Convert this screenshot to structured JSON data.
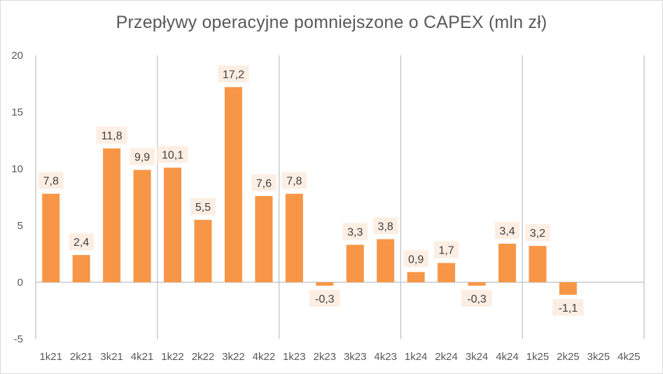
{
  "chart_data": {
    "type": "bar",
    "title": "Przepływy operacyjne pomniejszone o CAPEX (mln zł)",
    "xlabel": "",
    "ylabel": "",
    "categories": [
      "1k21",
      "2k21",
      "3k21",
      "4k21",
      "1k22",
      "2k22",
      "3k22",
      "4k22",
      "1k23",
      "2k23",
      "3k23",
      "4k23",
      "1k24",
      "2k24",
      "3k24",
      "4k24",
      "1k25",
      "2k25",
      "3k25",
      "4k25"
    ],
    "values": [
      7.8,
      2.4,
      11.8,
      9.9,
      10.1,
      5.5,
      17.2,
      7.6,
      7.8,
      -0.3,
      3.3,
      3.8,
      0.9,
      1.7,
      -0.3,
      3.4,
      3.2,
      -1.1,
      null,
      null
    ],
    "data_labels": [
      "7,8",
      "2,4",
      "11,8",
      "9,9",
      "10,1",
      "5,5",
      "17,2",
      "7,6",
      "7,8",
      "-0,3",
      "3,3",
      "3,8",
      "0,9",
      "1,7",
      "-0,3",
      "3,4",
      "3,2",
      "-1,1",
      "",
      ""
    ],
    "ylim": [
      -5,
      20
    ],
    "yticks": [
      20,
      15,
      10,
      5,
      0,
      -5
    ],
    "ytick_labels": [
      "20",
      "15",
      "10",
      "5",
      "0",
      "-5"
    ],
    "grid": "vertical separators between years",
    "legend": "none",
    "colors": {
      "bar": "#F79646",
      "label_bg": "#FDEEE3",
      "axis": "#BFBFBF",
      "text": "#595959"
    }
  }
}
